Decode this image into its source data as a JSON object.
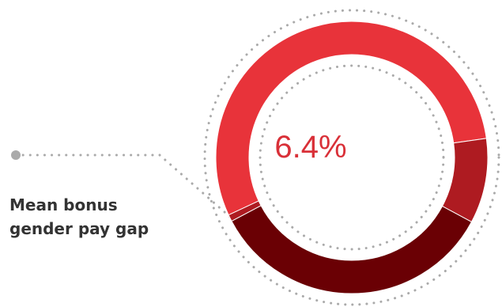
{
  "colors": {
    "segment_light": "#e8333a",
    "segment_mid": "#ae1b21",
    "segment_dark": "#6a0004",
    "value_text": "#d93038",
    "dots": "#aaaaaa",
    "label_text": "#333333"
  },
  "label": {
    "line1": "Mean bonus",
    "line2": "gender pay gap"
  },
  "chart_data": {
    "type": "pie",
    "variant": "donut",
    "center_label": "6.4%",
    "slices": [
      {
        "value": 54.7,
        "color_key": "segment_light"
      },
      {
        "value": 10.1,
        "color_key": "segment_mid"
      },
      {
        "value": 34.4,
        "color_key": "segment_dark"
      },
      {
        "value": 0.8,
        "color_key": "segment_mid"
      }
    ],
    "start_angle_deg": 245,
    "direction": "clockwise",
    "legend": "none",
    "grid": false
  }
}
